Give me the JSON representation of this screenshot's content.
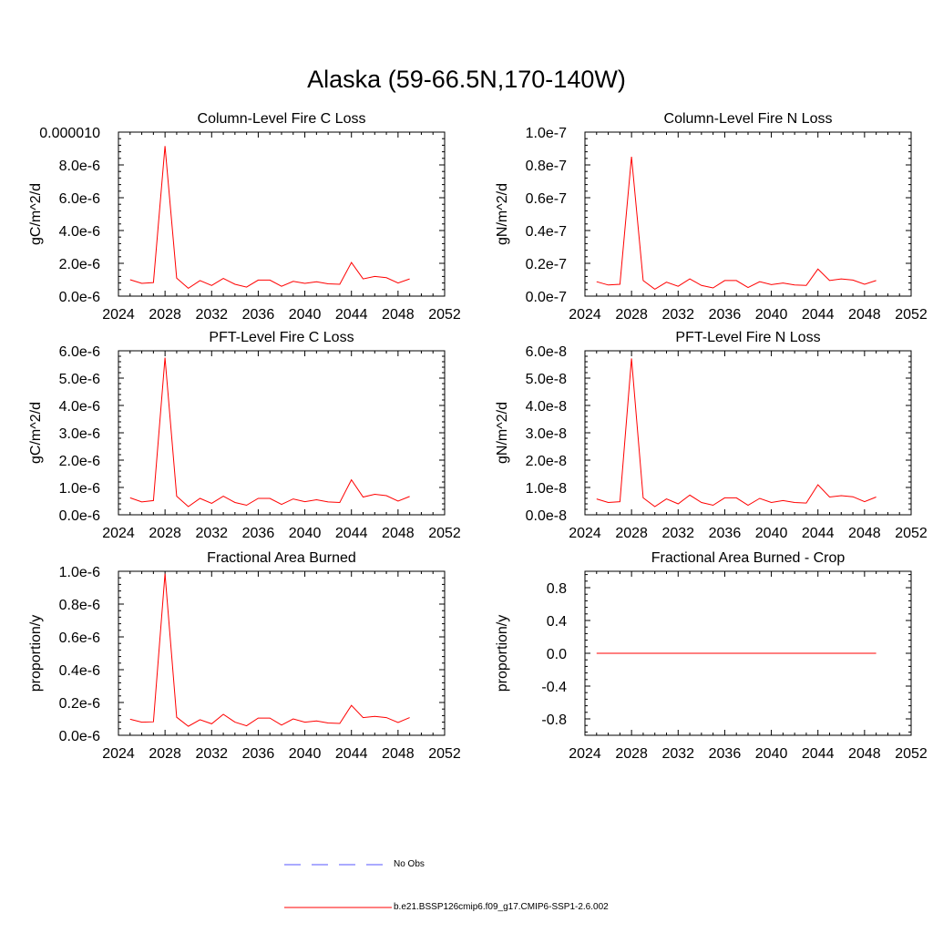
{
  "title": "Alaska (59-66.5N,170-140W)",
  "colors": {
    "model_line": "#ff0000",
    "obs_line": "#5555ff",
    "axis": "#000000"
  },
  "legend": {
    "obs_label": "No Obs",
    "model_label": "b.e21.BSSP126cmip6.f09_g17.CMIP6-SSP1-2.6.002"
  },
  "chart_data": [
    {
      "type": "line",
      "title": "Column-Level Fire C Loss",
      "ylabel": "gC/m^2/d",
      "xlim": [
        2024,
        2052
      ],
      "ylim": [
        0,
        1e-05
      ],
      "xticks": [
        2024,
        2028,
        2032,
        2036,
        2040,
        2044,
        2048,
        2052
      ],
      "yticks": [
        0,
        2e-06,
        4e-06,
        6e-06,
        8e-06,
        1e-05
      ],
      "yticklabels": [
        "0.0e-6",
        "2.0e-6",
        "4.0e-6",
        "6.0e-6",
        "8.0e-6",
        "0.000010"
      ],
      "series": [
        {
          "name": "b.e21.BSSP126cmip6.f09_g17.CMIP6-SSP1-2.6.002",
          "x": [
            2025,
            2026,
            2027,
            2028,
            2029,
            2030,
            2031,
            2032,
            2033,
            2034,
            2035,
            2036,
            2037,
            2038,
            2039,
            2040,
            2041,
            2042,
            2043,
            2044,
            2045,
            2046,
            2047,
            2048,
            2049
          ],
          "y": [
            1e-06,
            7.8e-07,
            8.3e-07,
            9.15e-06,
            1.1e-06,
            4.8e-07,
            9.5e-07,
            6.5e-07,
            1.08e-06,
            7.2e-07,
            5.5e-07,
            9.8e-07,
            9.8e-07,
            6e-07,
            9e-07,
            7.8e-07,
            8.8e-07,
            7.5e-07,
            7.2e-07,
            2.05e-06,
            1.05e-06,
            1.2e-06,
            1.12e-06,
            8e-07,
            1.05e-06
          ]
        }
      ]
    },
    {
      "type": "line",
      "title": "Column-Level Fire N Loss",
      "ylabel": "gN/m^2/d",
      "xlim": [
        2024,
        2052
      ],
      "ylim": [
        0,
        1e-07
      ],
      "xticks": [
        2024,
        2028,
        2032,
        2036,
        2040,
        2044,
        2048,
        2052
      ],
      "yticks": [
        0,
        2e-08,
        4e-08,
        6e-08,
        8e-08,
        1e-07
      ],
      "yticklabels": [
        "0.0e-7",
        "0.2e-7",
        "0.4e-7",
        "0.6e-7",
        "0.8e-7",
        "1.0e-7"
      ],
      "series": [
        {
          "name": "b.e21.BSSP126cmip6.f09_g17.CMIP6-SSP1-2.6.002",
          "x": [
            2025,
            2026,
            2027,
            2028,
            2029,
            2030,
            2031,
            2032,
            2033,
            2034,
            2035,
            2036,
            2037,
            2038,
            2039,
            2040,
            2041,
            2042,
            2043,
            2044,
            2045,
            2046,
            2047,
            2048,
            2049
          ],
          "y": [
            8.8e-09,
            6.8e-09,
            7.2e-09,
            8.5e-08,
            9.5e-09,
            4.2e-09,
            8.5e-09,
            6e-09,
            1.05e-08,
            6.5e-09,
            5e-09,
            9.5e-09,
            9.5e-09,
            5.2e-09,
            8.8e-09,
            7e-09,
            8e-09,
            6.8e-09,
            6.5e-09,
            1.65e-08,
            9.5e-09,
            1.05e-08,
            9.8e-09,
            7.2e-09,
            9.5e-09
          ]
        }
      ]
    },
    {
      "type": "line",
      "title": "PFT-Level Fire C Loss",
      "ylabel": "gC/m^2/d",
      "xlim": [
        2024,
        2052
      ],
      "ylim": [
        0,
        6e-06
      ],
      "xticks": [
        2024,
        2028,
        2032,
        2036,
        2040,
        2044,
        2048,
        2052
      ],
      "yticks": [
        0,
        1e-06,
        2e-06,
        3e-06,
        4e-06,
        5e-06,
        6e-06
      ],
      "yticklabels": [
        "0.0e-6",
        "1.0e-6",
        "2.0e-6",
        "3.0e-6",
        "4.0e-6",
        "5.0e-6",
        "6.0e-6"
      ],
      "series": [
        {
          "name": "b.e21.BSSP126cmip6.f09_g17.CMIP6-SSP1-2.6.002",
          "x": [
            2025,
            2026,
            2027,
            2028,
            2029,
            2030,
            2031,
            2032,
            2033,
            2034,
            2035,
            2036,
            2037,
            2038,
            2039,
            2040,
            2041,
            2042,
            2043,
            2044,
            2045,
            2046,
            2047,
            2048,
            2049
          ],
          "y": [
            6.2e-07,
            4.7e-07,
            5.2e-07,
            5.75e-06,
            6.8e-07,
            3e-07,
            6e-07,
            4.2e-07,
            6.8e-07,
            4.5e-07,
            3.5e-07,
            6e-07,
            6e-07,
            3.8e-07,
            5.8e-07,
            4.8e-07,
            5.5e-07,
            4.7e-07,
            4.5e-07,
            1.28e-06,
            6.5e-07,
            7.5e-07,
            7e-07,
            5e-07,
            6.7e-07
          ]
        }
      ]
    },
    {
      "type": "line",
      "title": "PFT-Level Fire N Loss",
      "ylabel": "gN/m^2/d",
      "xlim": [
        2024,
        2052
      ],
      "ylim": [
        0,
        6e-08
      ],
      "xticks": [
        2024,
        2028,
        2032,
        2036,
        2040,
        2044,
        2048,
        2052
      ],
      "yticks": [
        0,
        1e-08,
        2e-08,
        3e-08,
        4e-08,
        5e-08,
        6e-08
      ],
      "yticklabels": [
        "0.0e-8",
        "1.0e-8",
        "2.0e-8",
        "3.0e-8",
        "4.0e-8",
        "5.0e-8",
        "6.0e-8"
      ],
      "series": [
        {
          "name": "b.e21.BSSP126cmip6.f09_g17.CMIP6-SSP1-2.6.002",
          "x": [
            2025,
            2026,
            2027,
            2028,
            2029,
            2030,
            2031,
            2032,
            2033,
            2034,
            2035,
            2036,
            2037,
            2038,
            2039,
            2040,
            2041,
            2042,
            2043,
            2044,
            2045,
            2046,
            2047,
            2048,
            2049
          ],
          "y": [
            5.8e-09,
            4.5e-09,
            4.8e-09,
            5.72e-08,
            6.2e-09,
            3e-09,
            5.8e-09,
            4e-09,
            7.2e-09,
            4.5e-09,
            3.5e-09,
            6.2e-09,
            6.2e-09,
            3.5e-09,
            6e-09,
            4.5e-09,
            5.2e-09,
            4.5e-09,
            4.3e-09,
            1.1e-08,
            6.5e-09,
            7e-09,
            6.6e-09,
            4.8e-09,
            6.5e-09
          ]
        }
      ]
    },
    {
      "type": "line",
      "title": "Fractional Area Burned",
      "ylabel": "proportion/y",
      "xlim": [
        2024,
        2052
      ],
      "ylim": [
        0,
        1e-06
      ],
      "xticks": [
        2024,
        2028,
        2032,
        2036,
        2040,
        2044,
        2048,
        2052
      ],
      "yticks": [
        0,
        2e-07,
        4e-07,
        6e-07,
        8e-07,
        1e-06
      ],
      "yticklabels": [
        "0.0e-6",
        "0.2e-6",
        "0.4e-6",
        "0.6e-6",
        "0.8e-6",
        "1.0e-6"
      ],
      "series": [
        {
          "name": "b.e21.BSSP126cmip6.f09_g17.CMIP6-SSP1-2.6.002",
          "x": [
            2025,
            2026,
            2027,
            2028,
            2029,
            2030,
            2031,
            2032,
            2033,
            2034,
            2035,
            2036,
            2037,
            2038,
            2039,
            2040,
            2041,
            2042,
            2043,
            2044,
            2045,
            2046,
            2047,
            2048,
            2049
          ],
          "y": [
            9.8e-08,
            8e-08,
            8.2e-08,
            9.85e-07,
            1.1e-07,
            5.5e-08,
            9.5e-08,
            7e-08,
            1.28e-07,
            8e-08,
            5.8e-08,
            1.05e-07,
            1.05e-07,
            6.2e-08,
            1e-07,
            8e-08,
            8.8e-08,
            7.5e-08,
            7.2e-08,
            1.82e-07,
            1.08e-07,
            1.15e-07,
            1.08e-07,
            7.8e-08,
            1.08e-07
          ]
        }
      ]
    },
    {
      "type": "line",
      "title": "Fractional Area Burned - Crop",
      "ylabel": "proportion/y",
      "xlim": [
        2024,
        2052
      ],
      "ylim": [
        -1.0,
        1.0
      ],
      "xticks": [
        2024,
        2028,
        2032,
        2036,
        2040,
        2044,
        2048,
        2052
      ],
      "yticks": [
        -0.8,
        -0.4,
        0.0,
        0.4,
        0.8
      ],
      "yticklabels": [
        "-0.8",
        "-0.4",
        "0.0",
        "0.4",
        "0.8"
      ],
      "series": [
        {
          "name": "b.e21.BSSP126cmip6.f09_g17.CMIP6-SSP1-2.6.002",
          "x": [
            2025,
            2026,
            2027,
            2028,
            2029,
            2030,
            2031,
            2032,
            2033,
            2034,
            2035,
            2036,
            2037,
            2038,
            2039,
            2040,
            2041,
            2042,
            2043,
            2044,
            2045,
            2046,
            2047,
            2048,
            2049
          ],
          "y": [
            0,
            0,
            0,
            0,
            0,
            0,
            0,
            0,
            0,
            0,
            0,
            0,
            0,
            0,
            0,
            0,
            0,
            0,
            0,
            0,
            0,
            0,
            0,
            0,
            0
          ]
        }
      ]
    }
  ]
}
